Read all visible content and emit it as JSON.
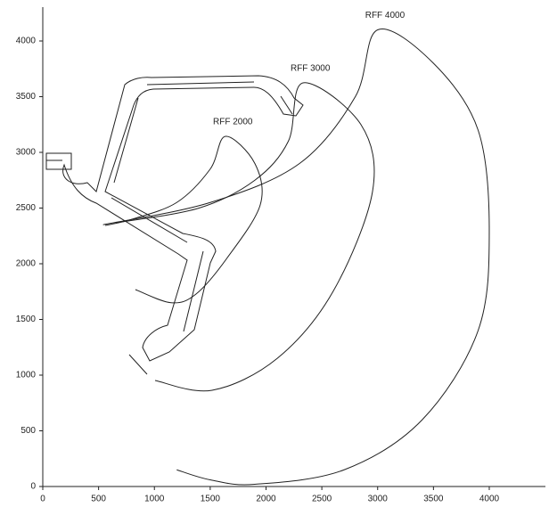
{
  "chart_data": {
    "type": "line",
    "color": "#222222",
    "xlim": [
      0,
      4500
    ],
    "ylim": [
      0,
      4300
    ],
    "xticks": [
      0,
      500,
      1000,
      1500,
      2000,
      2500,
      3000,
      3500,
      4000
    ],
    "yticks": [
      0,
      500,
      1000,
      1500,
      2000,
      2500,
      3000,
      3500,
      4000
    ],
    "series": [
      {
        "name": "RFF 2000",
        "x": [
          830,
          1150,
          1373,
          1650,
          1948,
          1900,
          1637,
          1500,
          1200,
          800,
          559
        ],
        "y": [
          1768,
          1650,
          1728,
          2050,
          2528,
          2900,
          3144,
          2850,
          2550,
          2400,
          2344
        ]
      },
      {
        "name": "RFF 3000",
        "x": [
          1006,
          1517,
          2100,
          2600,
          2954,
          2850,
          2331,
          2200,
          1900,
          1400,
          655
        ],
        "y": [
          952,
          864,
          1150,
          1750,
          2648,
          3250,
          3624,
          3100,
          2750,
          2500,
          2368
        ]
      },
      {
        "name": "RFF 4000",
        "x": [
          1200,
          1500,
          1900,
          2700,
          3400,
          3900,
          4000,
          3900,
          3500,
          3000,
          2800,
          2300,
          1500,
          540
        ],
        "y": [
          150,
          60,
          20,
          150,
          600,
          1400,
          2300,
          3200,
          3800,
          4100,
          3500,
          2900,
          2550,
          2350
        ]
      }
    ]
  }
}
